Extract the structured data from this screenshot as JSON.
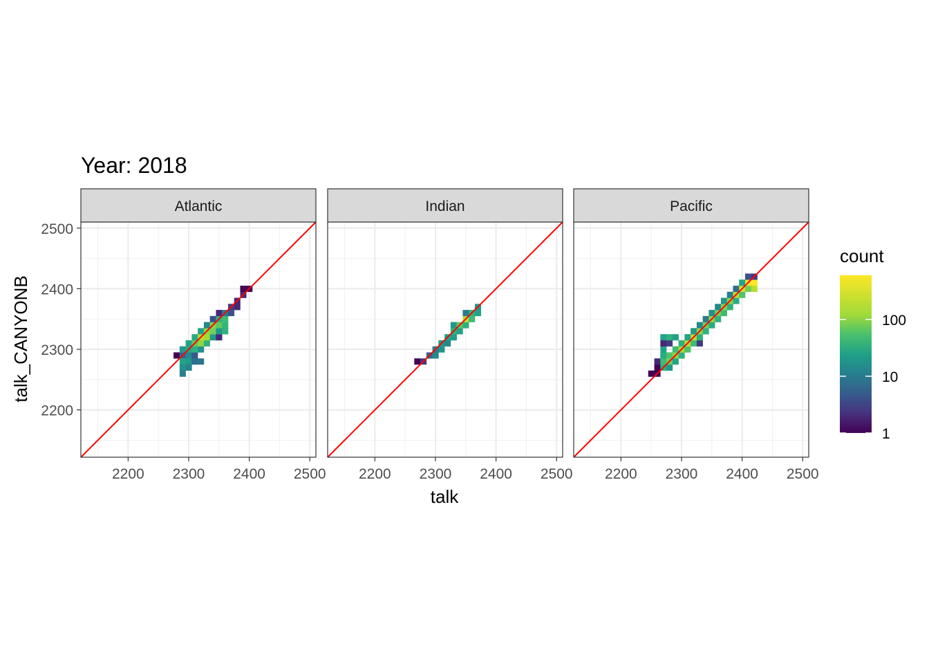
{
  "chart_data": {
    "type": "heatmap",
    "title": "Year: 2018",
    "xlabel": "talk",
    "ylabel": "talk_CANYONB",
    "xlim": [
      2122,
      2510
    ],
    "ylim": [
      2122,
      2510
    ],
    "x_ticks": [
      2200,
      2300,
      2400,
      2500
    ],
    "y_ticks": [
      2200,
      2300,
      2400,
      2500
    ],
    "x_tick_labels": [
      "2200",
      "2300",
      "2400",
      "2500"
    ],
    "y_tick_labels": [
      "2200",
      "2300",
      "2400",
      "2500"
    ],
    "grid": true,
    "bin_width": 10,
    "reference_line": {
      "slope": 1,
      "intercept": 0,
      "color": "#ff0000"
    },
    "legend": {
      "title": "count",
      "position": "right",
      "scale": "log",
      "range": [
        1,
        600
      ],
      "breaks": [
        1,
        10,
        100
      ],
      "break_labels": [
        "1",
        "10",
        "100"
      ],
      "colormap": "viridis"
    },
    "panels": [
      {
        "name": "Atlantic",
        "bins": [
          [
            2280,
            2290,
            1
          ],
          [
            2290,
            2290,
            8
          ],
          [
            2300,
            2290,
            20
          ],
          [
            2310,
            2290,
            6
          ],
          [
            2290,
            2280,
            40
          ],
          [
            2300,
            2280,
            30
          ],
          [
            2310,
            2280,
            10
          ],
          [
            2320,
            2280,
            12
          ],
          [
            2290,
            2270,
            25
          ],
          [
            2300,
            2270,
            18
          ],
          [
            2290,
            2260,
            15
          ],
          [
            2290,
            2300,
            30
          ],
          [
            2300,
            2300,
            45
          ],
          [
            2310,
            2300,
            60
          ],
          [
            2320,
            2300,
            25
          ],
          [
            2300,
            2310,
            40
          ],
          [
            2310,
            2310,
            120
          ],
          [
            2320,
            2310,
            200
          ],
          [
            2330,
            2310,
            60
          ],
          [
            2310,
            2320,
            50
          ],
          [
            2320,
            2320,
            300
          ],
          [
            2330,
            2320,
            250
          ],
          [
            2340,
            2320,
            30
          ],
          [
            2350,
            2320,
            2
          ],
          [
            2320,
            2330,
            40
          ],
          [
            2330,
            2330,
            200
          ],
          [
            2340,
            2330,
            150
          ],
          [
            2350,
            2330,
            30
          ],
          [
            2360,
            2330,
            60
          ],
          [
            2330,
            2340,
            20
          ],
          [
            2340,
            2340,
            180
          ],
          [
            2350,
            2340,
            120
          ],
          [
            2360,
            2340,
            70
          ],
          [
            2340,
            2350,
            5
          ],
          [
            2350,
            2350,
            60
          ],
          [
            2360,
            2350,
            80
          ],
          [
            2350,
            2360,
            2
          ],
          [
            2360,
            2360,
            15
          ],
          [
            2370,
            2360,
            5
          ],
          [
            2370,
            2370,
            3
          ],
          [
            2380,
            2370,
            2
          ],
          [
            2380,
            2380,
            2
          ],
          [
            2390,
            2390,
            2
          ],
          [
            2400,
            2400,
            1
          ],
          [
            2390,
            2400,
            1
          ]
        ]
      },
      {
        "name": "Indian",
        "bins": [
          [
            2270,
            2280,
            1
          ],
          [
            2280,
            2280,
            3
          ],
          [
            2290,
            2290,
            8
          ],
          [
            2300,
            2290,
            20
          ],
          [
            2300,
            2300,
            15
          ],
          [
            2310,
            2300,
            25
          ],
          [
            2310,
            2310,
            30
          ],
          [
            2320,
            2310,
            20
          ],
          [
            2320,
            2320,
            40
          ],
          [
            2330,
            2320,
            35
          ],
          [
            2330,
            2330,
            60
          ],
          [
            2340,
            2330,
            40
          ],
          [
            2330,
            2340,
            30
          ],
          [
            2340,
            2340,
            120
          ],
          [
            2350,
            2340,
            60
          ],
          [
            2350,
            2350,
            300
          ],
          [
            2360,
            2350,
            80
          ],
          [
            2350,
            2360,
            15
          ],
          [
            2360,
            2360,
            60
          ],
          [
            2370,
            2360,
            40
          ],
          [
            2370,
            2370,
            30
          ]
        ]
      },
      {
        "name": "Pacific",
        "bins": [
          [
            2250,
            2260,
            1
          ],
          [
            2260,
            2260,
            1
          ],
          [
            2260,
            2270,
            1
          ],
          [
            2270,
            2270,
            60
          ],
          [
            2280,
            2270,
            30
          ],
          [
            2260,
            2280,
            2
          ],
          [
            2270,
            2280,
            80
          ],
          [
            2280,
            2280,
            150
          ],
          [
            2290,
            2280,
            40
          ],
          [
            2270,
            2290,
            50
          ],
          [
            2280,
            2290,
            100
          ],
          [
            2290,
            2290,
            200
          ],
          [
            2300,
            2290,
            60
          ],
          [
            2270,
            2300,
            40
          ],
          [
            2290,
            2300,
            80
          ],
          [
            2300,
            2300,
            250
          ],
          [
            2310,
            2300,
            100
          ],
          [
            2270,
            2310,
            2
          ],
          [
            2280,
            2310,
            3
          ],
          [
            2300,
            2310,
            60
          ],
          [
            2310,
            2310,
            300
          ],
          [
            2320,
            2310,
            80
          ],
          [
            2330,
            2310,
            3
          ],
          [
            2270,
            2320,
            40
          ],
          [
            2280,
            2320,
            60
          ],
          [
            2290,
            2320,
            40
          ],
          [
            2310,
            2320,
            40
          ],
          [
            2320,
            2320,
            300
          ],
          [
            2330,
            2320,
            60
          ],
          [
            2320,
            2330,
            30
          ],
          [
            2330,
            2330,
            200
          ],
          [
            2340,
            2330,
            60
          ],
          [
            2330,
            2340,
            20
          ],
          [
            2340,
            2340,
            150
          ],
          [
            2350,
            2340,
            50
          ],
          [
            2340,
            2350,
            15
          ],
          [
            2350,
            2350,
            200
          ],
          [
            2360,
            2350,
            60
          ],
          [
            2350,
            2360,
            25
          ],
          [
            2360,
            2360,
            150
          ],
          [
            2370,
            2360,
            80
          ],
          [
            2360,
            2370,
            20
          ],
          [
            2370,
            2370,
            180
          ],
          [
            2380,
            2370,
            60
          ],
          [
            2370,
            2380,
            30
          ],
          [
            2380,
            2380,
            200
          ],
          [
            2390,
            2380,
            50
          ],
          [
            2380,
            2390,
            15
          ],
          [
            2390,
            2390,
            300
          ],
          [
            2400,
            2390,
            100
          ],
          [
            2390,
            2400,
            10
          ],
          [
            2400,
            2400,
            400
          ],
          [
            2410,
            2400,
            150
          ],
          [
            2420,
            2400,
            300
          ],
          [
            2400,
            2410,
            40
          ],
          [
            2410,
            2410,
            500
          ],
          [
            2420,
            2410,
            600
          ],
          [
            2410,
            2420,
            5
          ],
          [
            2420,
            2420,
            3
          ]
        ]
      }
    ]
  }
}
